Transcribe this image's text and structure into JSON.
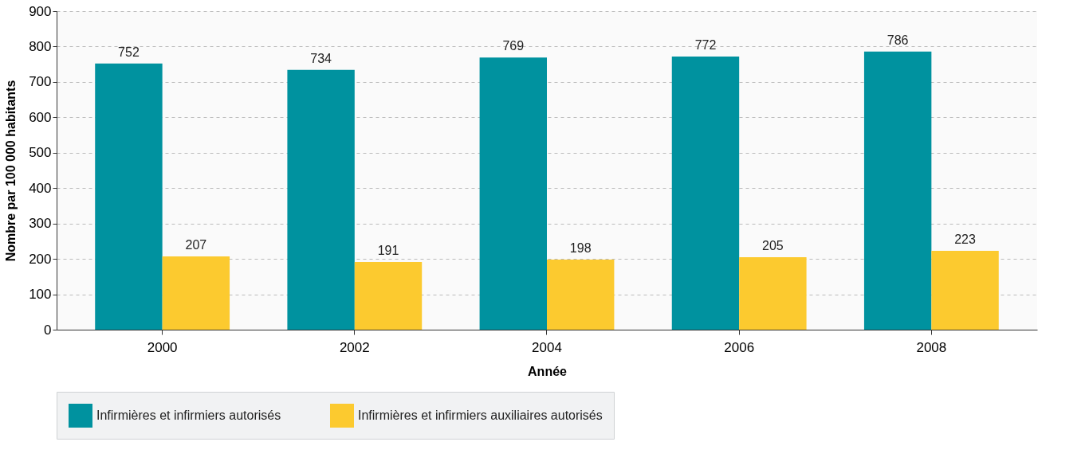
{
  "chart_data": {
    "type": "bar",
    "xlabel": "Année",
    "ylabel": "Nombre par 100 000 habitants",
    "categories": [
      "2000",
      "2002",
      "2004",
      "2006",
      "2008"
    ],
    "series": [
      {
        "name": "Infirmières et infirmiers autorisés",
        "color": "#00929f",
        "values": [
          752,
          734,
          769,
          772,
          786
        ]
      },
      {
        "name": "Infirmières et infirmiers auxiliaires autorisés",
        "color": "#fcca2f",
        "values": [
          207,
          191,
          198,
          205,
          223
        ]
      }
    ],
    "ylim": [
      0,
      900
    ],
    "yticks": [
      0,
      100,
      200,
      300,
      400,
      500,
      600,
      700,
      800,
      900
    ],
    "grid": "y",
    "legend": "bottom",
    "data_labels": true
  }
}
